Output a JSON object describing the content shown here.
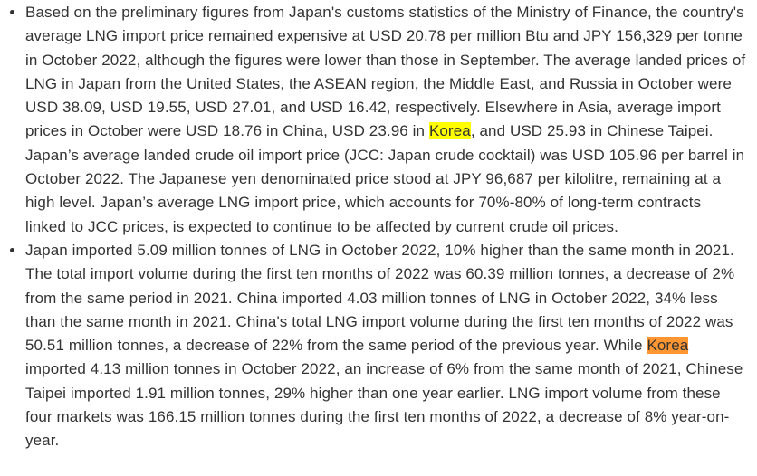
{
  "bullets": [
    {
      "before": "Based on the preliminary figures from Japan's customs statistics of the Ministry of Finance, the country's average LNG import price remained expensive at USD 20.78 per million Btu and JPY 156,329 per tonne in October 2022, although the figures were lower than those in September. The average landed prices of LNG in Japan from the United States, the ASEAN region, the Middle East, and Russia in October were USD 38.09, USD 19.55, USD 27.01, and USD 16.42, respectively. Elsewhere in Asia, average import prices in October were USD 18.76 in China, USD 23.96 in ",
      "highlight": "Korea",
      "after": ", and USD 25.93 in Chinese Taipei. Japan’s average landed crude oil import price (JCC: Japan crude cocktail) was USD 105.96 per barrel in October 2022. The Japanese yen denominated price stood at JPY 96,687 per kilolitre, remaining at a high level. Japan’s average LNG import price, which accounts for 70%-80% of long-term contracts linked to JCC prices, is expected to continue to be affected by current crude oil prices."
    },
    {
      "before": "Japan imported 5.09 million tonnes of LNG in October 2022, 10% higher than the same month in 2021. The total import volume during the first ten months of 2022 was 60.39 million tonnes, a decrease of 2% from the same period in 2021. China imported 4.03 million tonnes of LNG in October 2022, 34% less than the same month in 2021. China's total LNG import volume during the first ten months of 2022 was 50.51 million tonnes, a decrease of 22% from the same period of the previous year. While ",
      "highlight": "Korea",
      "after": " imported 4.13 million tonnes in October 2022, an increase of 6% from the same month of 2021, Chinese Taipei imported 1.91 million tonnes, 29% higher than one year earlier. LNG import volume from these four markets was 166.15 million tonnes during the first ten months of 2022, a decrease of 8% year-on-year."
    }
  ]
}
